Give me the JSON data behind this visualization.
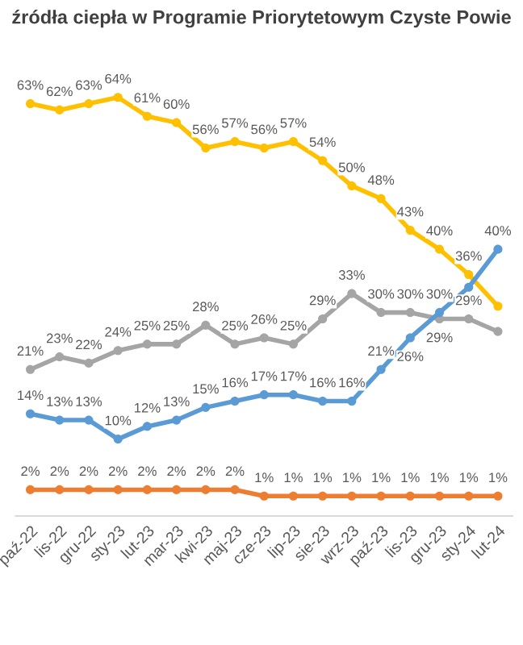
{
  "chart_data": {
    "type": "line",
    "title": "źródła ciepła w Programie Priorytetowym Czyste Powie",
    "categories": [
      "paź-22",
      "lis-22",
      "gru-22",
      "sty-23",
      "lut-23",
      "mar-23",
      "kwi-23",
      "maj-23",
      "cze-23",
      "lip-23",
      "sie-23",
      "wrz-23",
      "paź-23",
      "lis-23",
      "gru-23",
      "sty-24",
      "lut-24"
    ],
    "series": [
      {
        "color": "#ffc000",
        "values": [
          63,
          62,
          63,
          64,
          61,
          60,
          56,
          57,
          56,
          57,
          54,
          50,
          48,
          43,
          40,
          36,
          31
        ],
        "value_labels": [
          "63%",
          "62%",
          "63%",
          "64%",
          "61%",
          "60%",
          "56%",
          "57%",
          "56%",
          "57%",
          "54%",
          "50%",
          "48%",
          "43%",
          "40%",
          "36%",
          null
        ]
      },
      {
        "color": "#a5a5a5",
        "values": [
          21,
          23,
          22,
          24,
          25,
          25,
          28,
          25,
          26,
          25,
          29,
          33,
          30,
          30,
          29,
          29,
          27
        ],
        "value_labels": [
          "21%",
          "23%",
          "22%",
          "24%",
          "25%",
          "25%",
          "28%",
          "25%",
          "26%",
          "25%",
          "29%",
          "33%",
          "30%",
          "30%",
          "29%",
          "29%",
          null
        ]
      },
      {
        "color": "#5b9bd5",
        "values": [
          14,
          13,
          13,
          10,
          12,
          13,
          15,
          16,
          17,
          17,
          16,
          16,
          21,
          26,
          30,
          34,
          40
        ],
        "value_labels": [
          "14%",
          "13%",
          "13%",
          "10%",
          "12%",
          "13%",
          "15%",
          "16%",
          "17%",
          "17%",
          "16%",
          "16%",
          "21%",
          "26%",
          "30%",
          null,
          "40%"
        ]
      },
      {
        "color": "#ed7d31",
        "values": [
          2,
          2,
          2,
          2,
          2,
          2,
          2,
          2,
          1,
          1,
          1,
          1,
          1,
          1,
          1,
          1,
          1
        ],
        "value_labels": [
          "2%",
          "2%",
          "2%",
          "2%",
          "2%",
          "2%",
          "2%",
          "2%",
          "1%",
          "1%",
          "1%",
          "1%",
          "1%",
          "1%",
          "1%",
          "1%",
          "1%"
        ]
      }
    ],
    "marker": "circle",
    "grid": false,
    "legend": false
  }
}
